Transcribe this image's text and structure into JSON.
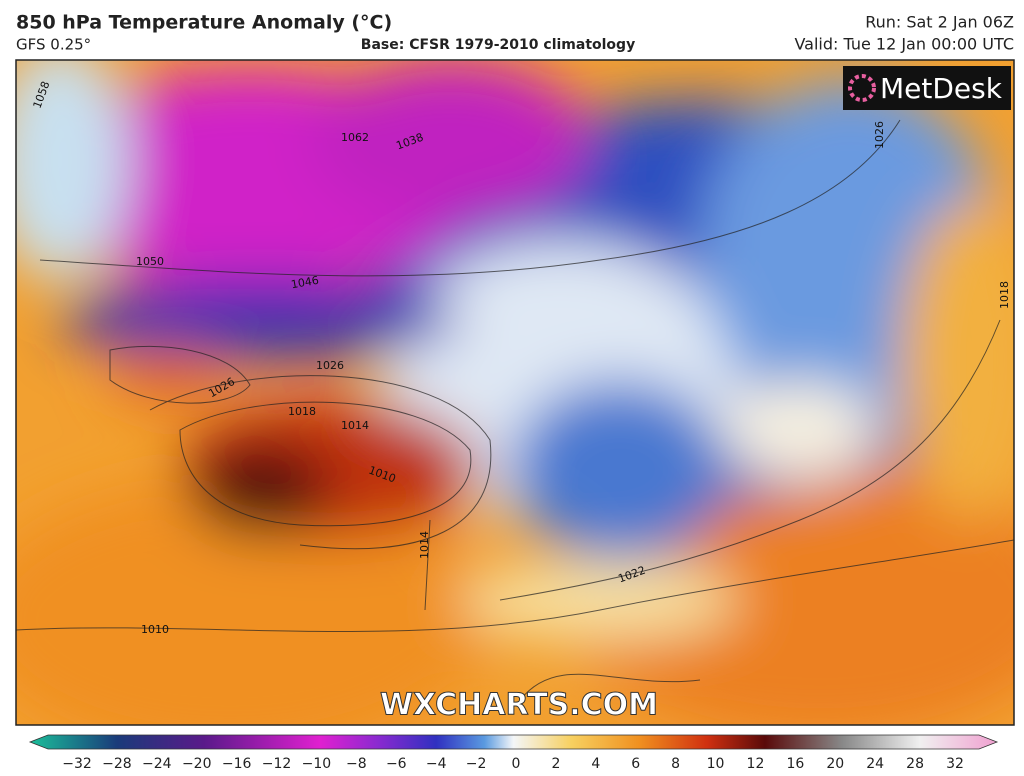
{
  "header": {
    "title": "850 hPa Temperature Anomaly (°C)",
    "model": "GFS 0.25°",
    "base": "Base: CFSR 1979-2010 climatology",
    "run": "Run: Sat 2 Jan 06Z",
    "valid": "Valid: Tue 12 Jan 00:00 UTC"
  },
  "map": {
    "logo": "MetDesk",
    "watermark": "WXCHARTS.COM",
    "contour_labels": [
      "1058",
      "1062",
      "1038",
      "1026",
      "1050",
      "1046",
      "1026",
      "1026",
      "1018",
      "1014",
      "1010",
      "1014",
      "1022",
      "1010",
      "1018"
    ]
  },
  "colorbar": {
    "labels": [
      "−32",
      "−28",
      "−24",
      "−20",
      "−16",
      "−12",
      "−10",
      "−8",
      "−6",
      "−4",
      "−2",
      "0",
      "2",
      "4",
      "6",
      "8",
      "10",
      "12",
      "16",
      "20",
      "24",
      "28",
      "32"
    ]
  }
}
